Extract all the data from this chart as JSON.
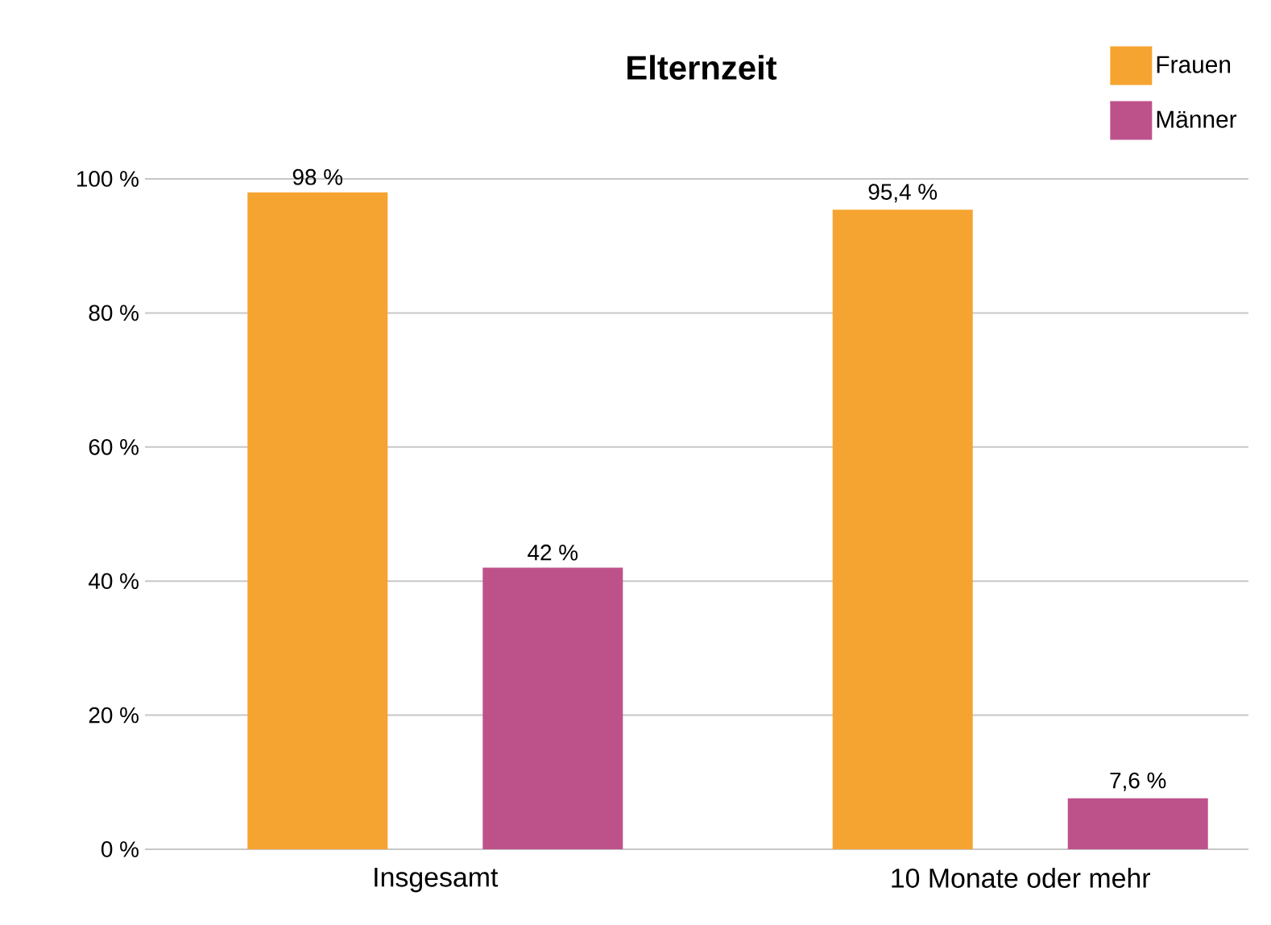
{
  "chart_data": {
    "type": "bar",
    "title": "Elternzeit",
    "categories": [
      "Insgesamt",
      "10 Monate oder mehr"
    ],
    "series": [
      {
        "name": "Frauen",
        "color": "#f6a431",
        "values": [
          98,
          95.4
        ],
        "value_labels": [
          "98 %",
          "95,4 %"
        ]
      },
      {
        "name": "Männer",
        "color": "#bd528b",
        "values": [
          42,
          7.6
        ],
        "value_labels": [
          "42 %",
          "7,6 %"
        ]
      }
    ],
    "ylim": [
      0,
      100
    ],
    "yticks": [
      {
        "value": 0,
        "label": "0 %"
      },
      {
        "value": 20,
        "label": "20 %"
      },
      {
        "value": 40,
        "label": "40 %"
      },
      {
        "value": 60,
        "label": "60 %"
      },
      {
        "value": 80,
        "label": "80 %"
      },
      {
        "value": 100,
        "label": "100 %"
      }
    ],
    "grid": "y",
    "legend": "top right"
  }
}
